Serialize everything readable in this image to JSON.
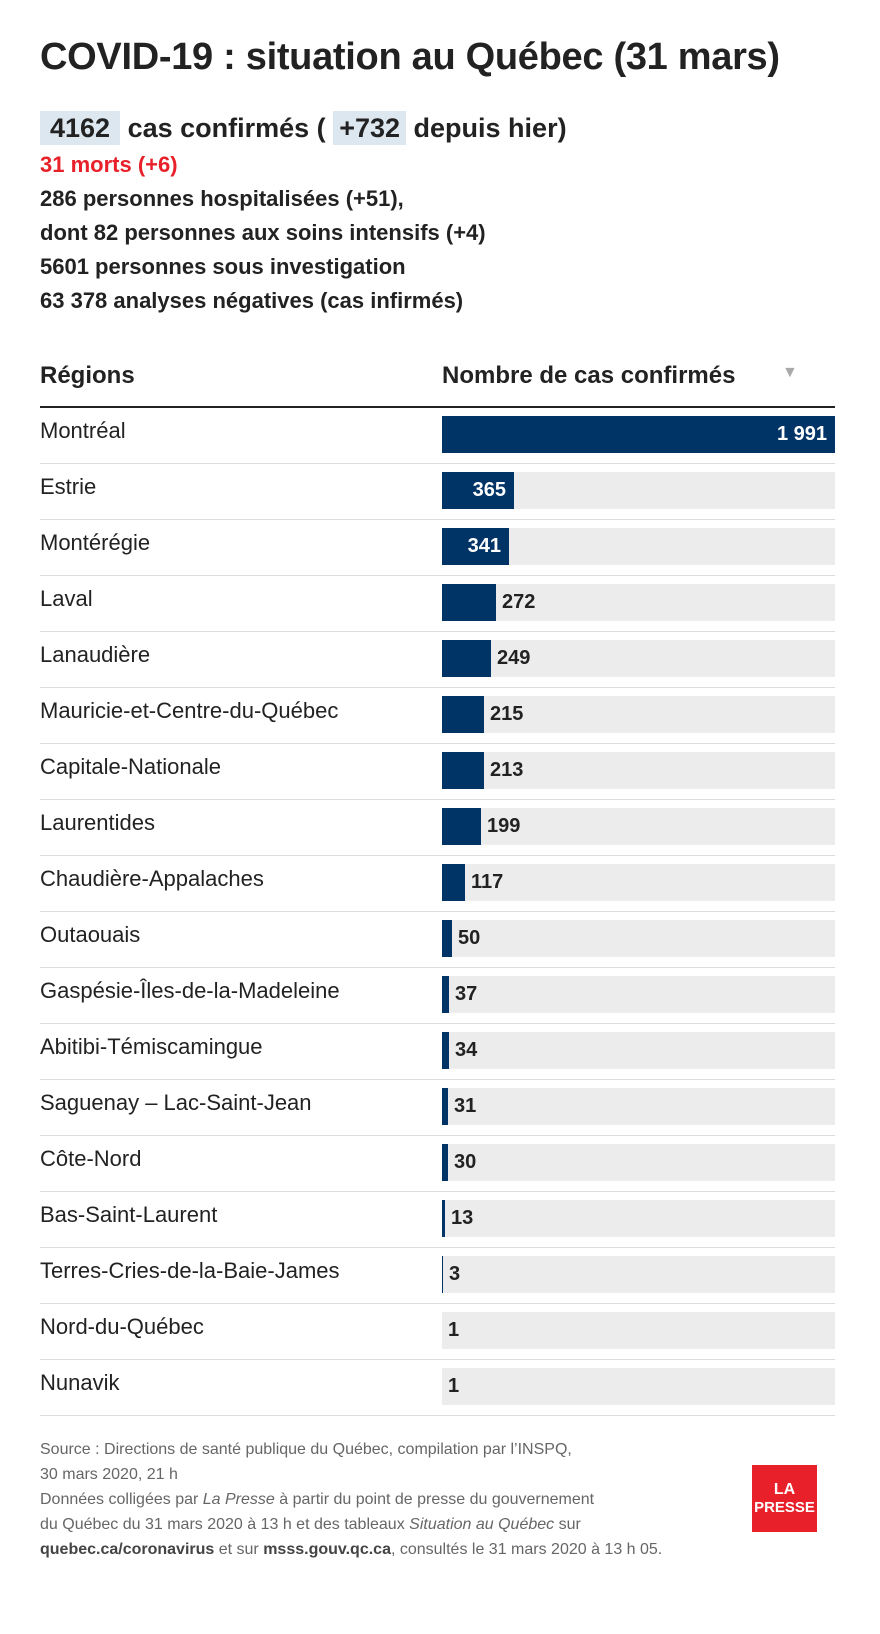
{
  "title": "COVID-19 : situation au Québec (31 mars)",
  "summary": {
    "confirmed": "4162",
    "confirmed_label": "cas confirmés (",
    "new_cases": "+732",
    "new_cases_label": "depuis hier)",
    "deaths": "31 morts (+6)",
    "hospitalized": "286 personnes hospitalisées (+51),",
    "icu": "dont 82 personnes aux soins intensifs (+4)",
    "investigation": "5601 personnes sous investigation",
    "negative": "63 378 analyses négatives (cas infirmés)"
  },
  "table": {
    "header_region": "Régions",
    "header_count": "Nombre de cas confirmés",
    "sort_icon": "triangle-down-icon"
  },
  "colors": {
    "bar": "#003366",
    "track": "#ececec",
    "highlight": "#dde7ef",
    "deaths": "#e8202a",
    "brand": "#e8202a"
  },
  "chart_data": {
    "type": "bar",
    "orientation": "horizontal",
    "xlim": [
      0,
      1991
    ],
    "categories": [
      "Montréal",
      "Estrie",
      "Montérégie",
      "Laval",
      "Lanaudière",
      "Mauricie-et-Centre-du-Québec",
      "Capitale-Nationale",
      "Laurentides",
      "Chaudière-Appalaches",
      "Outaouais",
      "Gaspésie-Îles-de-la-Madeleine",
      "Abitibi-Témiscamingue",
      "Saguenay – Lac-Saint-Jean",
      "Côte-Nord",
      "Bas-Saint-Laurent",
      "Terres-Cries-de-la-Baie-James",
      "Nord-du-Québec",
      "Nunavik"
    ],
    "values": [
      1991,
      365,
      341,
      272,
      249,
      215,
      213,
      199,
      117,
      50,
      37,
      34,
      31,
      30,
      13,
      3,
      1,
      1
    ],
    "labels": [
      "1 991",
      "365",
      "341",
      "272",
      "249",
      "215",
      "213",
      "199",
      "117",
      "50",
      "37",
      "34",
      "31",
      "30",
      "13",
      "3",
      "1",
      "1"
    ]
  },
  "footer": {
    "source": "Source : Directions de santé publique du Québec, compilation par l’INSPQ,",
    "source_date": "30 mars 2020, 21 h",
    "part1": "Données colligées par ",
    "press": "La Presse",
    "part2": " à partir du point de presse du gouvernement",
    "part3": "du Québec du 31 mars 2020 à 13 h et des tableaux ",
    "situation": "Situation au Québec",
    "part4": " sur",
    "site1": "quebec.ca/coronavirus",
    "part5": " et sur ",
    "site2": "msss.gouv.qc.ca",
    "part6": ", consultés le 31 mars 2020 à 13 h 05."
  },
  "logo": {
    "line1": "LA",
    "line2": "PRESSE"
  }
}
